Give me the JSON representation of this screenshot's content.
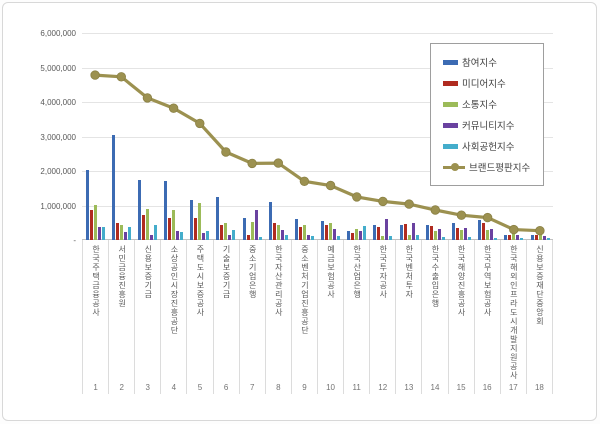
{
  "chart_data": {
    "type": "bar",
    "title": "",
    "xlabel": "",
    "ylabel": "",
    "ylim": [
      0,
      6000000
    ],
    "grid": true,
    "legend_position": "inside-top-right",
    "y_ticks": [
      "6,000,000",
      "5,000,000",
      "4,000,000",
      "3,000,000",
      "2,000,000",
      "1,000,000",
      "-"
    ],
    "categories": [
      "한국주택금융공사",
      "서민금융진흥원",
      "신용보증기금",
      "소상공인시장진흥공단",
      "주택도시보증공사",
      "기술보증기금",
      "중소기업은행",
      "한국자산관리공사",
      "중소벤처기업진흥공단",
      "예금보험공사",
      "한국산업은행",
      "한국투자공사",
      "한국벤처투자",
      "한국수출입은행",
      "한국해양진흥공사",
      "한국무역보험공사",
      "한국해외인프라도시개발지원공사",
      "신용보증재단중앙회"
    ],
    "category_numbers": [
      "1",
      "2",
      "3",
      "4",
      "5",
      "6",
      "7",
      "8",
      "9",
      "10",
      "11",
      "12",
      "13",
      "14",
      "15",
      "16",
      "17",
      "18"
    ],
    "series": [
      {
        "name": "참여지수",
        "type": "bar",
        "color": "#3c6bb3",
        "values": [
          2030000,
          3050000,
          1730000,
          1700000,
          1170000,
          1250000,
          630000,
          1090000,
          610000,
          560000,
          270000,
          430000,
          430000,
          450000,
          480000,
          580000,
          160000,
          140000
        ]
      },
      {
        "name": "미디어지수",
        "type": "bar",
        "color": "#b02b20",
        "values": [
          870000,
          500000,
          720000,
          650000,
          630000,
          450000,
          160000,
          480000,
          380000,
          430000,
          210000,
          370000,
          460000,
          400000,
          350000,
          480000,
          150000,
          150000
        ]
      },
      {
        "name": "소통지수",
        "type": "bar",
        "color": "#9cbb59",
        "values": [
          1010000,
          430000,
          890000,
          880000,
          1080000,
          500000,
          510000,
          450000,
          450000,
          480000,
          310000,
          120000,
          140000,
          260000,
          290000,
          290000,
          240000,
          190000
        ]
      },
      {
        "name": "커뮤니티지수",
        "type": "bar",
        "color": "#6a42a0",
        "values": [
          380000,
          240000,
          160000,
          260000,
          190000,
          140000,
          860000,
          290000,
          160000,
          310000,
          270000,
          620000,
          480000,
          320000,
          350000,
          320000,
          140000,
          120000
        ]
      },
      {
        "name": "사회공헌지수",
        "type": "bar",
        "color": "#44adcb",
        "values": [
          380000,
          380000,
          450000,
          240000,
          270000,
          290000,
          100000,
          160000,
          120000,
          120000,
          400000,
          120000,
          140000,
          100000,
          100000,
          70000,
          70000,
          70000
        ]
      },
      {
        "name": "브랜드평판지수",
        "type": "line",
        "color": "#9c9150",
        "values": [
          4780000,
          4730000,
          4120000,
          3820000,
          3380000,
          2550000,
          2220000,
          2230000,
          1700000,
          1580000,
          1250000,
          1120000,
          1040000,
          870000,
          720000,
          650000,
          300000,
          270000
        ]
      }
    ]
  }
}
